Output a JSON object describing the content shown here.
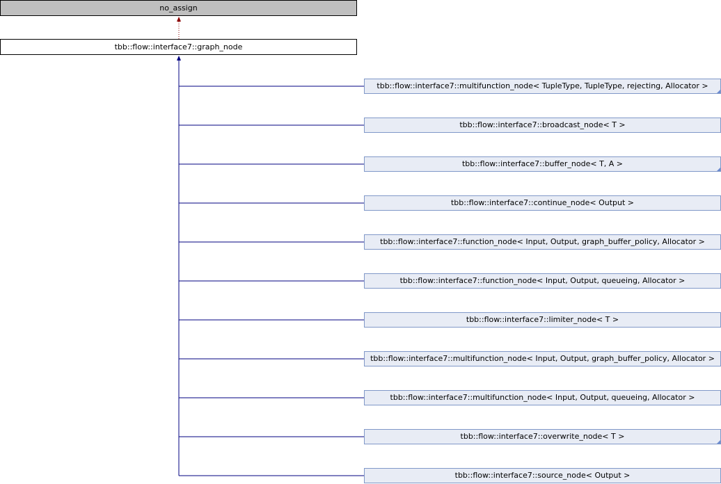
{
  "base_class": {
    "label": "no_assign"
  },
  "current_class": {
    "label": "tbb::flow::interface7::graph_node"
  },
  "derived_classes": [
    {
      "label": "tbb::flow::interface7::multifunction_node< TupleType, TupleType, rejecting, Allocator >",
      "truncated": true
    },
    {
      "label": "tbb::flow::interface7::broadcast_node< T >",
      "truncated": false
    },
    {
      "label": "tbb::flow::interface7::buffer_node< T, A >",
      "truncated": true
    },
    {
      "label": "tbb::flow::interface7::continue_node< Output >",
      "truncated": false
    },
    {
      "label": "tbb::flow::interface7::function_node< Input, Output, graph_buffer_policy, Allocator >",
      "truncated": false
    },
    {
      "label": "tbb::flow::interface7::function_node< Input, Output, queueing, Allocator >",
      "truncated": false
    },
    {
      "label": "tbb::flow::interface7::limiter_node< T >",
      "truncated": false
    },
    {
      "label": "tbb::flow::interface7::multifunction_node< Input, Output, graph_buffer_policy, Allocator >",
      "truncated": false
    },
    {
      "label": "tbb::flow::interface7::multifunction_node< Input, Output, queueing, Allocator >",
      "truncated": false
    },
    {
      "label": "tbb::flow::interface7::overwrite_node< T >",
      "truncated": true
    },
    {
      "label": "tbb::flow::interface7::source_node< Output >",
      "truncated": false
    }
  ],
  "colors": {
    "inheritance_edge": "#000080",
    "private_edge": "#8b0000",
    "base_fill": "#bfbfbf",
    "derived_fill": "#e8ecf5"
  }
}
